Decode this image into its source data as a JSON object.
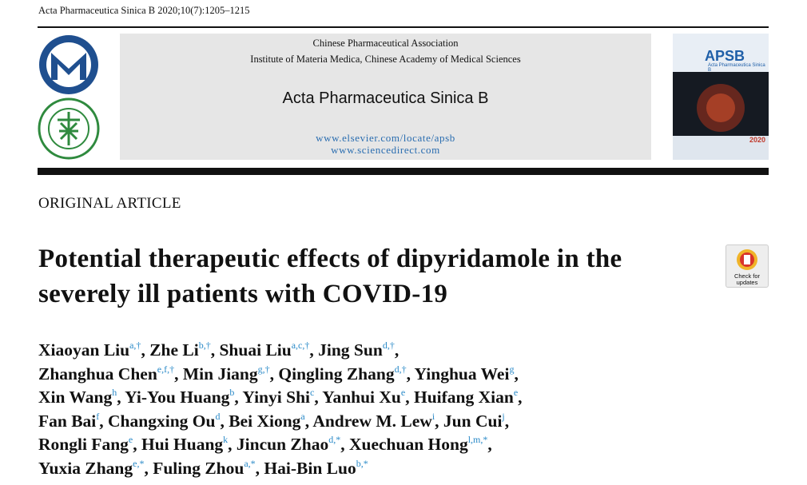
{
  "citation": "Acta Pharmaceutica Sinica B 2020;10(7):1205–1215",
  "masthead": {
    "org1": "Chinese Pharmaceutical Association",
    "org2": "Institute of Materia Medica, Chinese Academy of Medical Sciences",
    "journal": "Acta Pharmaceutica Sinica B",
    "url1": "www.elsevier.com/locate/apsb",
    "url2": "www.sciencedirect.com"
  },
  "cover": {
    "abbr": "APSB",
    "name": "Acta Pharmaceutica Sinica B",
    "year": "2020"
  },
  "badge": "Check for updates",
  "section": "ORIGINAL ARTICLE",
  "title": "Potential therapeutic effects of dipyridamole in the severely ill patients with COVID-19",
  "authors": [
    [
      {
        "name": "Xiaoyan Liu",
        "sup": "a,†",
        "punct": ","
      },
      {
        "name": "Zhe Li",
        "sup": "b,†",
        "punct": ","
      },
      {
        "name": "Shuai Liu",
        "sup": "a,c,†",
        "punct": ","
      },
      {
        "name": "Jing Sun",
        "sup": "d,†",
        "punct": ","
      }
    ],
    [
      {
        "name": "Zhanghua Chen",
        "sup": "e,f,†",
        "punct": ","
      },
      {
        "name": "Min Jiang",
        "sup": "g,†",
        "punct": ","
      },
      {
        "name": "Qingling Zhang",
        "sup": "d,†",
        "punct": ","
      },
      {
        "name": "Yinghua Wei",
        "sup": "g",
        "punct": ","
      }
    ],
    [
      {
        "name": "Xin Wang",
        "sup": "h",
        "punct": ","
      },
      {
        "name": "Yi-You Huang",
        "sup": "b",
        "punct": ","
      },
      {
        "name": "Yinyi Shi",
        "sup": "c",
        "punct": ","
      },
      {
        "name": "Yanhui Xu",
        "sup": "e",
        "punct": ","
      },
      {
        "name": "Huifang Xian",
        "sup": "e",
        "punct": ","
      }
    ],
    [
      {
        "name": "Fan Bai",
        "sup": "f",
        "punct": ","
      },
      {
        "name": "Changxing Ou",
        "sup": "d",
        "punct": ","
      },
      {
        "name": "Bei Xiong",
        "sup": "a",
        "punct": ","
      },
      {
        "name": "Andrew M. Lew",
        "sup": "i",
        "punct": ","
      },
      {
        "name": "Jun Cui",
        "sup": "j",
        "punct": ","
      }
    ],
    [
      {
        "name": "Rongli Fang",
        "sup": "e",
        "punct": ","
      },
      {
        "name": "Hui Huang",
        "sup": "k",
        "punct": ","
      },
      {
        "name": "Jincun Zhao",
        "sup": "d,*",
        "punct": ","
      },
      {
        "name": "Xuechuan Hong",
        "sup": "l,m,*",
        "punct": ","
      }
    ],
    [
      {
        "name": "Yuxia Zhang",
        "sup": "e,*",
        "punct": ","
      },
      {
        "name": "Fuling Zhou",
        "sup": "a,*",
        "punct": ","
      },
      {
        "name": "Hai-Bin Luo",
        "sup": "b,*"
      }
    ]
  ]
}
